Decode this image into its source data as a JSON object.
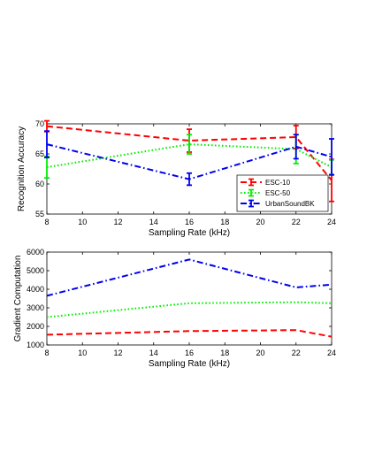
{
  "chart_data": [
    {
      "type": "line",
      "title": "",
      "xlabel": "Sampling Rate (kHz)",
      "ylabel": "Recognition Accuracy",
      "xlim": [
        8,
        24
      ],
      "ylim": [
        55,
        70
      ],
      "xticks": [
        "8",
        "10",
        "12",
        "14",
        "16",
        "18",
        "20",
        "22",
        "24"
      ],
      "yticks": [
        "55",
        "60",
        "65",
        "70"
      ],
      "grid": false,
      "legend": "lower-right",
      "x": [
        8,
        16,
        22,
        24
      ],
      "series": [
        {
          "name": "ESC-10",
          "color": "#ff0000",
          "style": "dashed",
          "values": [
            69.6,
            67.2,
            67.8,
            60.6
          ],
          "err": [
            0.9,
            1.9,
            1.9,
            3.5
          ]
        },
        {
          "name": "ESC-50",
          "color": "#00ee00",
          "style": "dotted",
          "values": [
            62.8,
            66.6,
            65.8,
            62.8
          ],
          "err": [
            1.8,
            1.6,
            2.4,
            1.2
          ]
        },
        {
          "name": "UrbanSoundBK",
          "color": "#0000ee",
          "style": "dashdot",
          "values": [
            66.6,
            60.8,
            66.2,
            64.5
          ],
          "err": [
            2.2,
            1.0,
            2.0,
            3.0
          ]
        }
      ]
    },
    {
      "type": "line",
      "title": "",
      "xlabel": "Sampling Rate (kHz)",
      "ylabel": "Gradient Computation",
      "xlim": [
        8,
        24
      ],
      "ylim": [
        1000,
        6000
      ],
      "xticks": [
        "8",
        "10",
        "12",
        "14",
        "16",
        "18",
        "20",
        "22",
        "24"
      ],
      "yticks": [
        "1000",
        "2000",
        "3000",
        "4000",
        "5000",
        "6000"
      ],
      "grid": false,
      "x": [
        8,
        16,
        22,
        24
      ],
      "series": [
        {
          "color": "#ff0000",
          "style": "dashed",
          "values": [
            1550,
            1750,
            1800,
            1450
          ]
        },
        {
          "color": "#00ee00",
          "style": "dotted",
          "values": [
            2500,
            3250,
            3300,
            3250
          ]
        },
        {
          "color": "#0000ee",
          "style": "dashdot",
          "values": [
            3650,
            5600,
            4100,
            4250
          ]
        }
      ]
    }
  ]
}
